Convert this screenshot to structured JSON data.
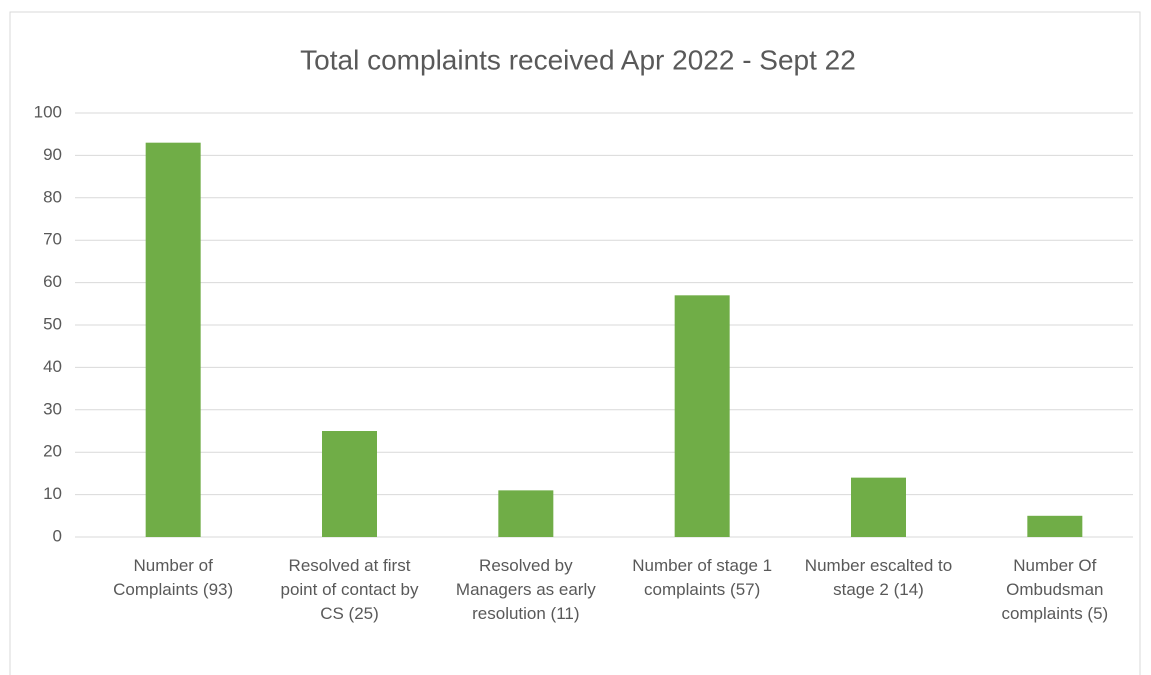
{
  "chart_data": {
    "type": "bar",
    "title": "Total complaints received Apr 2022 - Sept 22",
    "categories": [
      "Number of Complaints (93)",
      "Resolved at first point of contact by CS (25)",
      "Resolved by Managers as early resolution (11)",
      "Number of stage 1 complaints (57)",
      "Number escalted to stage 2 (14)",
      "Number Of Ombudsman complaints (5)"
    ],
    "values": [
      93,
      25,
      11,
      57,
      14,
      5
    ],
    "color": "#70ad47",
    "ylim": [
      0,
      100
    ],
    "yticks": [
      0,
      10,
      20,
      30,
      40,
      50,
      60,
      70,
      80,
      90,
      100
    ],
    "grid": true
  }
}
